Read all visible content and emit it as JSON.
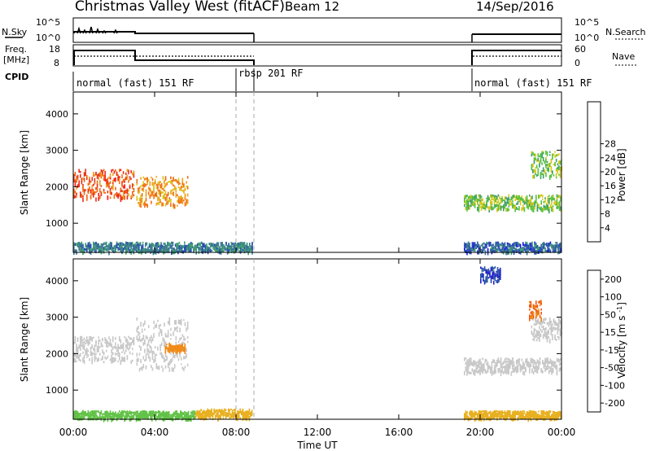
{
  "header": {
    "title": "Christmas Valley West (fitACF)",
    "beam": "Beam 12",
    "date": "14/Sep/2016"
  },
  "top_panels": {
    "nsky_label": "N.Sky",
    "nsky_ticks": [
      "10^5",
      "10^0"
    ],
    "nsearch_label": "N.Search",
    "nsearch_ticks": [
      "10^5",
      "10^0"
    ],
    "freq_label": "Freq.",
    "freq_unit": "[MHz]",
    "freq_ticks": [
      "18",
      "8"
    ],
    "nave_label": "Nave",
    "nave_ticks": [
      "60",
      "0"
    ],
    "cpid_label": "CPID",
    "cpid_segments": [
      {
        "name": "normal (fast) 151 RF",
        "start": 0.0,
        "end": 8.0
      },
      {
        "name": "rbsp 201 RF",
        "start": 8.0,
        "end": 8.75
      },
      {
        "name": "normal (fast) 151 RF",
        "start": 19.1,
        "end": 24.0
      }
    ]
  },
  "x_axis": {
    "label": "Time UT",
    "ticks": [
      "00:00",
      "04:00",
      "08:00",
      "12:00",
      "16:00",
      "20:00",
      "00:00"
    ],
    "range_hours": [
      0,
      24
    ]
  },
  "power_panel": {
    "ylabel": "Slant Range [km]",
    "yticks": [
      "1000",
      "2000",
      "3000",
      "4000"
    ],
    "colorbar_label": "Power [dB]",
    "colorbar_ticks": [
      "4",
      "8",
      "12",
      "16",
      "20",
      "24",
      "28"
    ],
    "colors": [
      "#1414e6",
      "#2a4db3",
      "#3d7a8f",
      "#3f9e6f",
      "#55c23c",
      "#d6c81a",
      "#f0a21e",
      "#f26b14",
      "#e8321b",
      "#ff1a1a"
    ]
  },
  "velocity_panel": {
    "ylabel": "Slant Range [km]",
    "yticks": [
      "1000",
      "2000",
      "3000",
      "4000"
    ],
    "colorbar_label": "Velocity [m s^-1]",
    "colorbar_ticks": [
      "200",
      "100",
      "50",
      "15",
      "-15",
      "-50",
      "-100",
      "-200"
    ],
    "colors": [
      "#2424c8",
      "#2f5ca8",
      "#3a9a78",
      "#62c248",
      "#c8c8c8",
      "#e8b020",
      "#f08a18",
      "#f05a12",
      "#e82020"
    ]
  },
  "chart_data": [
    {
      "type": "heatmap",
      "title": "",
      "xlabel": "Time UT",
      "ylabel": "Slant Range [km]",
      "xlim": [
        0,
        24
      ],
      "ylim": [
        200,
        4600
      ],
      "quantity": "Power [dB]",
      "regions": [
        {
          "t0": 0.0,
          "t1": 3.0,
          "r0": 1700,
          "r1": 2500,
          "value": 24
        },
        {
          "t0": 3.1,
          "t1": 5.6,
          "r0": 1500,
          "r1": 2300,
          "value": 20
        },
        {
          "t0": 0.0,
          "t1": 8.8,
          "r0": 250,
          "r1": 500,
          "value": 8
        },
        {
          "t0": 19.2,
          "t1": 24.0,
          "r0": 1400,
          "r1": 1800,
          "value": 14
        },
        {
          "t0": 22.5,
          "t1": 24.0,
          "r0": 2300,
          "r1": 3000,
          "value": 14
        },
        {
          "t0": 19.2,
          "t1": 24.0,
          "r0": 250,
          "r1": 500,
          "value": 6
        }
      ]
    },
    {
      "type": "heatmap",
      "title": "",
      "xlabel": "Time UT",
      "ylabel": "Slant Range [km]",
      "xlim": [
        0,
        24
      ],
      "ylim": [
        200,
        4600
      ],
      "quantity": "Velocity [m s^-1]",
      "regions": [
        {
          "t0": 0.0,
          "t1": 3.0,
          "r0": 1800,
          "r1": 2500,
          "value": 0
        },
        {
          "t0": 3.1,
          "t1": 5.6,
          "r0": 1600,
          "r1": 3000,
          "value": 0
        },
        {
          "t0": 4.5,
          "t1": 5.5,
          "r0": 2100,
          "r1": 2300,
          "value": -60
        },
        {
          "t0": 0.0,
          "t1": 6.0,
          "r0": 250,
          "r1": 450,
          "value": 40
        },
        {
          "t0": 6.0,
          "t1": 8.8,
          "r0": 250,
          "r1": 500,
          "value": -30
        },
        {
          "t0": 19.2,
          "t1": 24.0,
          "r0": 1500,
          "r1": 1900,
          "value": 0
        },
        {
          "t0": 22.5,
          "t1": 24.0,
          "r0": 2400,
          "r1": 3000,
          "value": 0
        },
        {
          "t0": 22.4,
          "t1": 23.0,
          "r0": 3000,
          "r1": 3500,
          "value": -100
        },
        {
          "t0": 20.0,
          "t1": 21.0,
          "r0": 4000,
          "r1": 4400,
          "value": 200
        },
        {
          "t0": 19.2,
          "t1": 24.0,
          "r0": 250,
          "r1": 450,
          "value": -20
        }
      ]
    }
  ]
}
